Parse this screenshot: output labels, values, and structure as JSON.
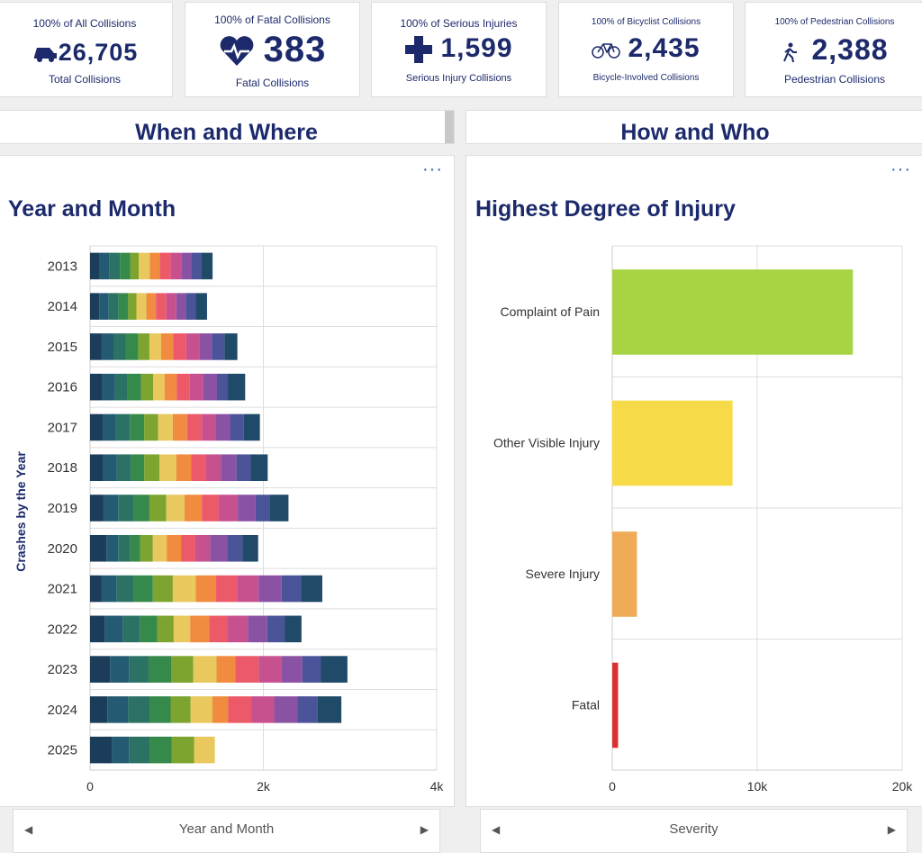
{
  "cards": [
    {
      "top": "100% of All Collisions",
      "value": "26,705",
      "bottom": "Total Collisions"
    },
    {
      "top": "100% of Fatal Collisions",
      "value": "383",
      "bottom": "Fatal Collisions"
    },
    {
      "top": "100% of Serious Injuries",
      "value": "1,599",
      "bottom": "Serious Injury Collisions"
    },
    {
      "top": "100% of Bicyclist Collisions",
      "value": "2,435",
      "bottom": "Bicycle-Involved Collisions"
    },
    {
      "top": "100% of Pedestrian Collisions",
      "value": "2,388",
      "bottom": "Pedestrian Collisions"
    }
  ],
  "sections": [
    "When and Where",
    "How and Who"
  ],
  "footers": [
    "Year and Month",
    "Severity"
  ],
  "chart_data": [
    {
      "type": "stacked-hbar",
      "title": "Year and Month",
      "y_label": "Crashes by the Year",
      "categories": [
        "2013",
        "2014",
        "2015",
        "2016",
        "2017",
        "2018",
        "2019",
        "2020",
        "2021",
        "2022",
        "2023",
        "2024",
        "2025"
      ],
      "series": [
        {
          "color": "#1c3d5a",
          "values": [
            110,
            105,
            130,
            135,
            145,
            150,
            155,
            190,
            130,
            170,
            230,
            200,
            250
          ]
        },
        {
          "color": "#245a72",
          "values": [
            115,
            110,
            140,
            150,
            155,
            160,
            170,
            135,
            175,
            205,
            220,
            240,
            200
          ]
        },
        {
          "color": "#2c7264",
          "values": [
            120,
            115,
            145,
            150,
            160,
            165,
            180,
            140,
            200,
            200,
            225,
            250,
            240
          ]
        },
        {
          "color": "#35894a",
          "values": [
            118,
            110,
            140,
            155,
            165,
            150,
            180,
            115,
            220,
            200,
            260,
            240,
            250
          ]
        },
        {
          "color": "#7ca42f",
          "values": [
            100,
            95,
            130,
            140,
            160,
            175,
            195,
            145,
            230,
            190,
            255,
            230,
            260
          ]
        },
        {
          "color": "#e9c85d",
          "values": [
            125,
            115,
            135,
            130,
            170,
            195,
            210,
            160,
            265,
            190,
            270,
            250,
            240
          ]
        },
        {
          "color": "#f08b3f",
          "values": [
            118,
            110,
            140,
            140,
            165,
            170,
            200,
            165,
            235,
            220,
            215,
            185,
            null
          ]
        },
        {
          "color": "#ec5a6a",
          "values": [
            125,
            120,
            150,
            150,
            170,
            175,
            195,
            165,
            240,
            215,
            270,
            270,
            null
          ]
        },
        {
          "color": "#c7508f",
          "values": [
            122,
            115,
            150,
            155,
            160,
            170,
            220,
            170,
            250,
            230,
            260,
            260,
            null
          ]
        },
        {
          "color": "#8a52a3",
          "values": [
            115,
            110,
            145,
            160,
            165,
            180,
            205,
            200,
            265,
            225,
            245,
            270,
            null
          ]
        },
        {
          "color": "#4b5399",
          "values": [
            120,
            115,
            145,
            125,
            160,
            165,
            160,
            175,
            225,
            200,
            215,
            230,
            null
          ]
        },
        {
          "color": "#1f4a68",
          "values": [
            126,
            130,
            150,
            200,
            185,
            195,
            220,
            180,
            245,
            195,
            305,
            275,
            null
          ]
        }
      ],
      "xlim": [
        0,
        4000
      ],
      "xticks": [
        0,
        {
          "value": 2000,
          "label": "2k"
        },
        {
          "value": 4000,
          "label": "4k"
        }
      ],
      "grid": true
    },
    {
      "type": "hbar",
      "title": "Highest Degree of Injury",
      "categories": [
        "Complaint of Pain",
        "Other Visible Injury",
        "Severe Injury",
        "Fatal"
      ],
      "values": [
        16600,
        8300,
        1700,
        400
      ],
      "colors": [
        "#a8d443",
        "#f6da47",
        "#efab55",
        "#d93030"
      ],
      "xlim": [
        0,
        20000
      ],
      "xticks": [
        0,
        {
          "value": 10000,
          "label": "10k"
        },
        {
          "value": 20000,
          "label": "20k"
        }
      ],
      "grid": true
    }
  ]
}
